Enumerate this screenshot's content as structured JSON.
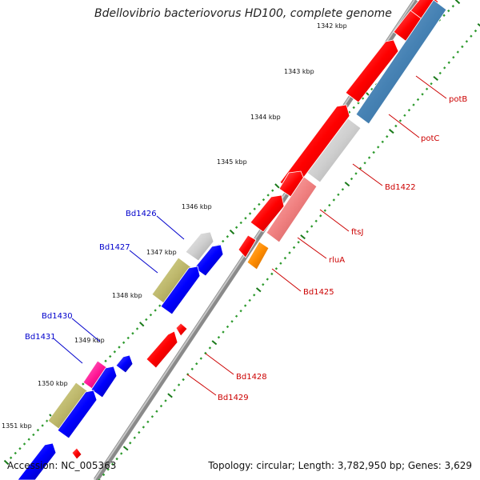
{
  "title": "Bdellovibrio bacteriovorus HD100, complete genome",
  "footer": {
    "accession": "Accession: NC_005363",
    "stats": "Topology: circular; Length: 3,782,950 bp; Genes: 3,629"
  },
  "colors": {
    "forward_gene": "#ff0000",
    "reverse_gene": "#0000ff",
    "tick_major": "#1a7a1a",
    "tick_minor": "#2e9a2e",
    "backbone": "#808080",
    "label_forward": "#cc0000",
    "label_reverse": "#0000cc"
  },
  "ruler": {
    "unit": "kbp",
    "labels": [
      "1342 kbp",
      "1343 kbp",
      "1344 kbp",
      "1345 kbp",
      "1346 kbp",
      "1347 kbp",
      "1348 kbp",
      "1349 kbp",
      "1350 kbp",
      "1351 kbp"
    ]
  },
  "gene_labels": {
    "forward": [
      "potB",
      "potC",
      "Bd1422",
      "ftsJ",
      "rluA",
      "Bd1425",
      "Bd1428",
      "Bd1429"
    ],
    "reverse": [
      "Bd1426",
      "Bd1427",
      "Bd1430",
      "Bd1431"
    ]
  }
}
